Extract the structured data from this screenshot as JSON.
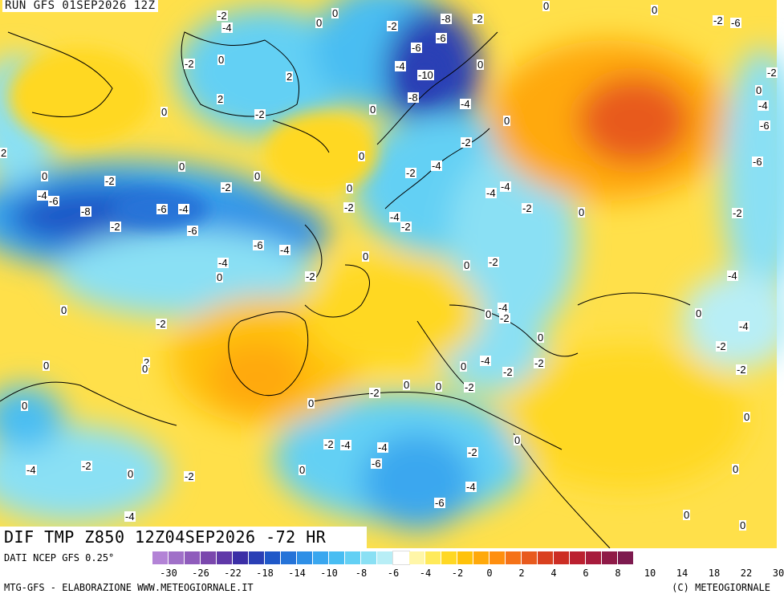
{
  "header": {
    "run_label": "RUN GFS 01SEP2026 12Z"
  },
  "title": {
    "text": "DIF TMP Z850 12Z04SEP2026 -72 HR"
  },
  "footer": {
    "source": "DATI NCEP GFS 0.25°",
    "left_credit": "MTG-GFS - ELABORAZIONE WWW.METEOGIORNALE.IT",
    "right_credit": "(C) METEOGIORNALE"
  },
  "legend": {
    "colors": [
      "#b383d6",
      "#a070c8",
      "#8f5cbc",
      "#7a47ad",
      "#5f38a8",
      "#3b2ea6",
      "#2a3fb5",
      "#1f58c8",
      "#2573d8",
      "#2e8fe6",
      "#3aa7ef",
      "#48bdf2",
      "#63d0f4",
      "#8ae0f4",
      "#b8eef6",
      "#ffffff",
      "#fff6a8",
      "#ffea5a",
      "#ffd824",
      "#ffc20a",
      "#ffa90a",
      "#ff8f0f",
      "#f57218",
      "#e85a1e",
      "#d9401f",
      "#cc2d24",
      "#bb2030",
      "#a71b3c",
      "#8f1a47",
      "#7d1a4f"
    ],
    "tick_labels": [
      "-30",
      "-26",
      "-22",
      "-18",
      "-14",
      "-10",
      "-8",
      "-6",
      "-4",
      "-2",
      "0",
      "2",
      "4",
      "6",
      "8",
      "10",
      "14",
      "18",
      "22",
      "30"
    ]
  },
  "contour_labels": [
    "0",
    "-2",
    "-4",
    "-6",
    "-8",
    "-10",
    "2"
  ]
}
